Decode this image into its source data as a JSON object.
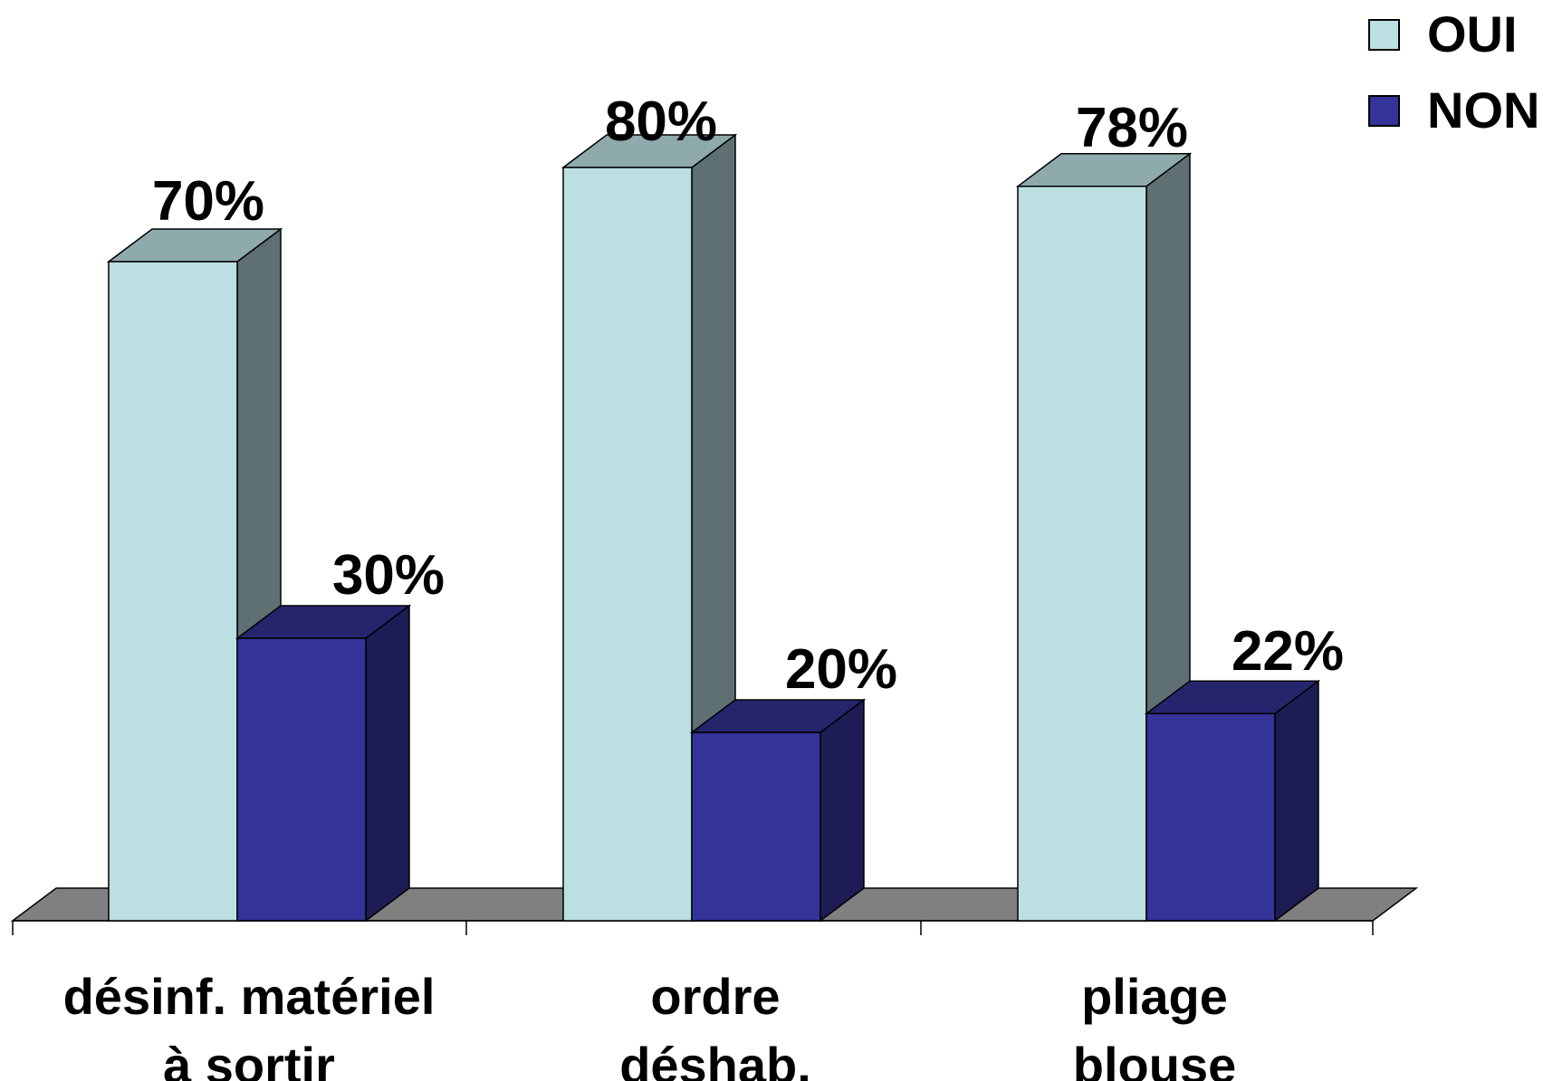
{
  "chart_data": {
    "type": "bar",
    "categories": [
      [
        "désinf. matériel",
        "à sortir"
      ],
      [
        "ordre",
        "déshab."
      ],
      [
        "pliage",
        "blouse"
      ]
    ],
    "series": [
      {
        "name": "OUI",
        "values": [
          70,
          80,
          78
        ],
        "labels": [
          "70%",
          "80%",
          "78%"
        ],
        "color": "#bce0e2"
      },
      {
        "name": "NON",
        "values": [
          30,
          20,
          22
        ],
        "labels": [
          "30%",
          "20%",
          "22%"
        ],
        "color": "#343399"
      }
    ],
    "ylim": [
      0,
      100
    ],
    "grid": false,
    "legend": "top-right",
    "floor_color": "#808080"
  }
}
